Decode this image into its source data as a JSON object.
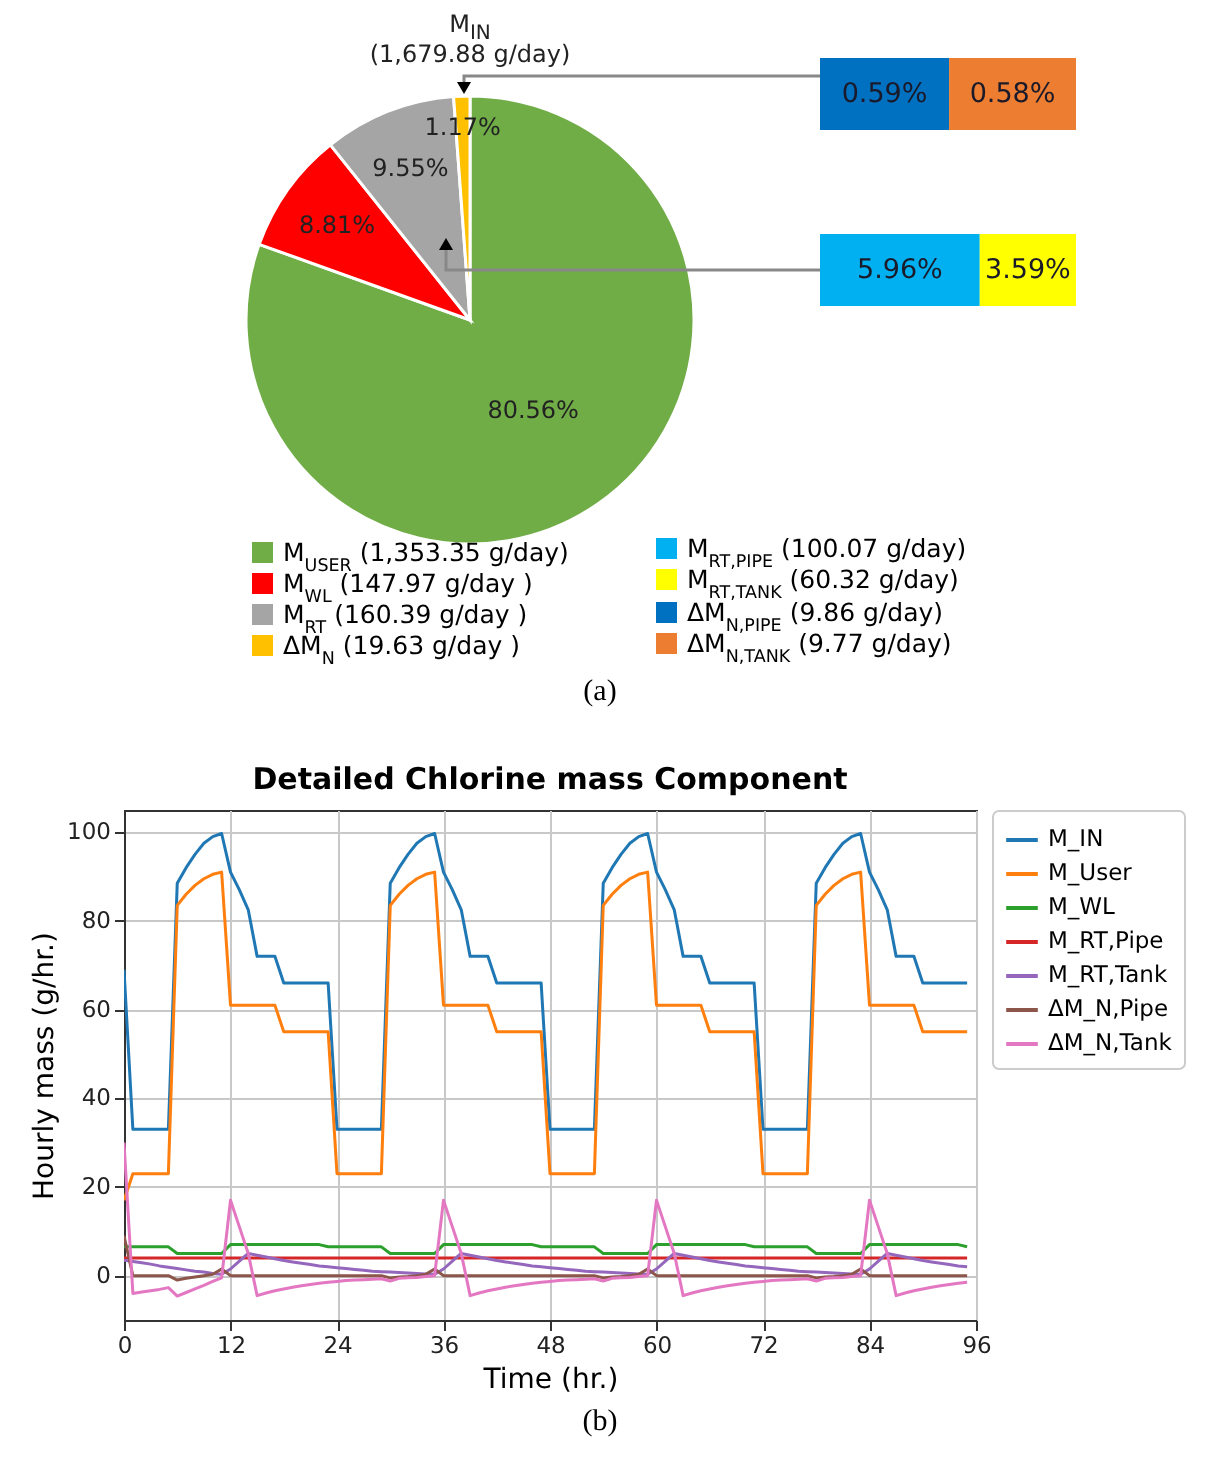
{
  "chart_data": [
    {
      "type": "pie",
      "categories": [
        "M$_{USER}$ (1,353.35 g/day)",
        "M$_{WL}$ (147.97 g/day )",
        "M$_{RT}$ (160.39 g/day )",
        "ΔM$_{N}$ (19.63 g/day )"
      ],
      "values": [
        80.56,
        8.81,
        9.55,
        1.17
      ],
      "colors": [
        "#70ad47",
        "#ff0000",
        "#a5a5a5",
        "#ffc000"
      ],
      "value_labels": [
        "80.56%",
        "8.81%",
        "9.55%",
        "1.17%"
      ],
      "legend": "bottom",
      "annotations": [
        "M$_{IN}$",
        "(1,679.88 g/day)",
        "(a)"
      ]
    },
    {
      "type": "bar",
      "orientation": "horizontal",
      "stacked": true,
      "categories": [
        null
      ],
      "legend": "bottom",
      "series": [
        {
          "name": "ΔM$_{N,PIPE}$ (9.86 g/day)",
          "color": "#0070c0",
          "values": [
            0.59
          ],
          "value_labels": [
            "0.59%"
          ]
        },
        {
          "name": "ΔM$_{N,TANK}$ (9.77 g/day)",
          "color": "#ed7d31",
          "values": [
            0.58
          ],
          "value_labels": [
            "0.58%"
          ]
        }
      ]
    },
    {
      "type": "bar",
      "orientation": "horizontal",
      "stacked": true,
      "categories": [
        null
      ],
      "legend": "bottom",
      "series": [
        {
          "name": "M$_{RT,PIPE}$ (100.07 g/day)",
          "color": "#00b0f0",
          "values": [
            5.96
          ],
          "value_labels": [
            "5.96%"
          ]
        },
        {
          "name": "M$_{RT,TANK}$ (60.32 g/day)",
          "color": "#ffff00",
          "values": [
            3.59
          ],
          "value_labels": [
            "3.59%"
          ]
        }
      ]
    },
    {
      "type": "line",
      "title": "Detailed Chlorine mass Component",
      "xlabel": "Time (hr.)",
      "ylabel": "Hourly mass (g/hr.)",
      "xlim": [
        0,
        96
      ],
      "xticks": [
        0,
        12,
        24,
        36,
        48,
        60,
        72,
        84,
        96
      ],
      "ylim": [
        -10,
        105
      ],
      "yticks": [
        0,
        20,
        40,
        60,
        80,
        100
      ],
      "grid": true,
      "legend": "right",
      "annotations": [
        "(b)"
      ],
      "x": [
        0,
        1,
        2,
        3,
        4,
        5,
        6,
        7,
        8,
        9,
        10,
        11,
        12,
        13,
        14,
        15,
        16,
        17,
        18,
        19,
        20,
        21,
        22,
        23,
        24,
        25,
        26,
        27,
        28,
        29,
        30,
        31,
        32,
        33,
        34,
        35,
        36,
        37,
        38,
        39,
        40,
        41,
        42,
        43,
        44,
        45,
        46,
        47,
        48,
        49,
        50,
        51,
        52,
        53,
        54,
        55,
        56,
        57,
        58,
        59,
        60,
        61,
        62,
        63,
        64,
        65,
        66,
        67,
        68,
        69,
        70,
        71,
        72,
        73,
        74,
        75,
        76,
        77,
        78,
        79,
        80,
        81,
        82,
        83,
        84,
        85,
        86,
        87,
        88,
        89,
        90,
        91,
        92,
        93,
        94,
        95
      ],
      "series": [
        {
          "name": "M_IN",
          "color": "#1f77b4",
          "values": [
            69,
            33,
            33,
            33,
            33,
            33,
            88.5,
            92,
            95,
            97.5,
            99,
            99.7,
            91,
            87,
            82.5,
            72,
            72,
            72,
            66,
            66,
            66,
            66,
            66,
            66,
            33,
            33,
            33,
            33,
            33,
            33,
            88.5,
            92,
            95,
            97.5,
            99,
            99.7,
            91,
            87,
            82.5,
            72,
            72,
            72,
            66,
            66,
            66,
            66,
            66,
            66,
            33,
            33,
            33,
            33,
            33,
            33,
            88.5,
            92,
            95,
            97.5,
            99,
            99.7,
            91,
            87,
            82.5,
            72,
            72,
            72,
            66,
            66,
            66,
            66,
            66,
            66,
            33,
            33,
            33,
            33,
            33,
            33,
            88.5,
            92,
            95,
            97.5,
            99,
            99.7,
            91,
            87,
            82.5,
            72,
            72,
            72,
            66,
            66,
            66,
            66,
            66,
            66
          ]
        },
        {
          "name": "M_User",
          "color": "#ff7f0e",
          "values": [
            17,
            23,
            23,
            23,
            23,
            23,
            83.5,
            86,
            88,
            89.5,
            90.5,
            91,
            61,
            61,
            61,
            61,
            61,
            61,
            55,
            55,
            55,
            55,
            55,
            55,
            23,
            23,
            23,
            23,
            23,
            23,
            83.5,
            86,
            88,
            89.5,
            90.5,
            91,
            61,
            61,
            61,
            61,
            61,
            61,
            55,
            55,
            55,
            55,
            55,
            55,
            23,
            23,
            23,
            23,
            23,
            23,
            83.5,
            86,
            88,
            89.5,
            90.5,
            91,
            61,
            61,
            61,
            61,
            61,
            61,
            55,
            55,
            55,
            55,
            55,
            55,
            23,
            23,
            23,
            23,
            23,
            23,
            83.5,
            86,
            88,
            89.5,
            90.5,
            91,
            61,
            61,
            61,
            61,
            61,
            61,
            55,
            55,
            55,
            55,
            55,
            55
          ]
        },
        {
          "name": "M_WL",
          "color": "#2ca02c",
          "values": [
            6.5,
            6.5,
            6.5,
            6.5,
            6.5,
            6.5,
            5,
            5,
            5,
            5,
            5,
            5,
            7,
            7,
            7,
            7,
            7,
            7,
            7,
            7,
            7,
            7,
            7,
            6.5,
            6.5,
            6.5,
            6.5,
            6.5,
            6.5,
            6.5,
            5,
            5,
            5,
            5,
            5,
            5,
            7,
            7,
            7,
            7,
            7,
            7,
            7,
            7,
            7,
            7,
            7,
            6.5,
            6.5,
            6.5,
            6.5,
            6.5,
            6.5,
            6.5,
            5,
            5,
            5,
            5,
            5,
            5,
            7,
            7,
            7,
            7,
            7,
            7,
            7,
            7,
            7,
            7,
            7,
            6.5,
            6.5,
            6.5,
            6.5,
            6.5,
            6.5,
            6.5,
            5,
            5,
            5,
            5,
            5,
            5,
            7,
            7,
            7,
            7,
            7,
            7,
            7,
            7,
            7,
            7,
            7,
            6.5
          ]
        },
        {
          "name": "M_RT,Pipe",
          "color": "#d62728",
          "values": [
            4,
            4,
            4,
            4,
            4,
            4,
            4,
            4,
            4,
            4,
            4,
            4,
            4,
            4,
            4,
            4,
            4,
            4,
            4,
            4,
            4,
            4,
            4,
            4,
            4,
            4,
            4,
            4,
            4,
            4,
            4,
            4,
            4,
            4,
            4,
            4,
            4,
            4,
            4,
            4,
            4,
            4,
            4,
            4,
            4,
            4,
            4,
            4,
            4,
            4,
            4,
            4,
            4,
            4,
            4,
            4,
            4,
            4,
            4,
            4,
            4,
            4,
            4,
            4,
            4,
            4,
            4,
            4,
            4,
            4,
            4,
            4,
            4,
            4,
            4,
            4,
            4,
            4,
            4,
            4,
            4,
            4,
            4,
            4,
            4,
            4,
            4,
            4,
            4,
            4,
            4,
            4,
            4,
            4,
            4,
            4
          ]
        },
        {
          "name": "M_RT,Tank",
          "color": "#9467bd",
          "values": [
            3.5,
            3.2,
            2.9,
            2.6,
            2.2,
            1.9,
            1.6,
            1.3,
            1,
            0.8,
            0.5,
            0.3,
            1.5,
            3.3,
            5,
            4.6,
            4.2,
            3.8,
            3.4,
            3.1,
            2.8,
            2.5,
            2.2,
            2,
            1.8,
            1.6,
            1.4,
            1.2,
            1,
            0.9,
            0.8,
            0.7,
            0.6,
            0.5,
            0.4,
            0.3,
            1.5,
            3.3,
            5,
            4.6,
            4.2,
            3.8,
            3.4,
            3.1,
            2.8,
            2.5,
            2.2,
            2,
            1.8,
            1.6,
            1.4,
            1.2,
            1,
            0.9,
            0.8,
            0.7,
            0.6,
            0.5,
            0.4,
            0.3,
            1.5,
            3.3,
            5,
            4.6,
            4.2,
            3.8,
            3.4,
            3.1,
            2.8,
            2.5,
            2.2,
            2,
            1.8,
            1.6,
            1.4,
            1.2,
            1,
            0.9,
            0.8,
            0.7,
            0.6,
            0.5,
            0.4,
            0.3,
            1.5,
            3.3,
            5,
            4.6,
            4.2,
            3.8,
            3.4,
            3.1,
            2.8,
            2.5,
            2.2,
            2
          ]
        },
        {
          "name": "ΔM_N,Pipe",
          "color": "#8c564b",
          "values": [
            9,
            0,
            0,
            0,
            0,
            0,
            -1,
            -0.6,
            -0.3,
            0,
            0.3,
            1.5,
            0,
            0,
            0,
            0,
            0,
            0,
            0,
            0,
            0,
            0,
            0,
            0,
            0,
            0,
            0,
            0,
            0,
            0,
            -0.5,
            -0.3,
            -0.2,
            0,
            0.3,
            1.5,
            0,
            0,
            0,
            0,
            0,
            0,
            0,
            0,
            0,
            0,
            0,
            0,
            0,
            0,
            0,
            0,
            0,
            0,
            -0.5,
            -0.3,
            -0.2,
            0,
            0.3,
            1.5,
            0,
            0,
            0,
            0,
            0,
            0,
            0,
            0,
            0,
            0,
            0,
            0,
            0,
            0,
            0,
            0,
            0,
            0,
            -0.5,
            -0.3,
            -0.2,
            0,
            0.3,
            1.5,
            0,
            0,
            0,
            0,
            0,
            0,
            0,
            0,
            0,
            0,
            0,
            0
          ]
        },
        {
          "name": "ΔM_N,Tank",
          "color": "#e377c2",
          "values": [
            30,
            -4,
            -3.7,
            -3.4,
            -3.1,
            -2.7,
            -4.6,
            -3.8,
            -3,
            -2.2,
            -1.3,
            -0.5,
            17,
            11,
            5,
            -4.5,
            -3.9,
            -3.4,
            -3,
            -2.6,
            -2.3,
            -2,
            -1.7,
            -1.5,
            -1.3,
            -1.1,
            -1,
            -0.9,
            -0.8,
            -0.7,
            -1.2,
            -0.6,
            -0.5,
            -0.4,
            -0.2,
            0,
            17,
            11,
            5,
            -4.5,
            -3.9,
            -3.4,
            -3,
            -2.6,
            -2.3,
            -2,
            -1.7,
            -1.5,
            -1.3,
            -1.1,
            -1,
            -0.9,
            -0.8,
            -0.7,
            -1.2,
            -0.6,
            -0.5,
            -0.4,
            -0.2,
            0,
            17,
            11,
            5,
            -4.5,
            -3.9,
            -3.4,
            -3,
            -2.6,
            -2.3,
            -2,
            -1.7,
            -1.5,
            -1.3,
            -1.1,
            -1,
            -0.9,
            -0.8,
            -0.7,
            -1.2,
            -0.6,
            -0.5,
            -0.4,
            -0.2,
            0,
            17,
            11,
            5,
            -4.5,
            -3.9,
            -3.4,
            -3,
            -2.6,
            -2.3,
            -2,
            -1.7,
            -1.5
          ]
        }
      ]
    }
  ]
}
